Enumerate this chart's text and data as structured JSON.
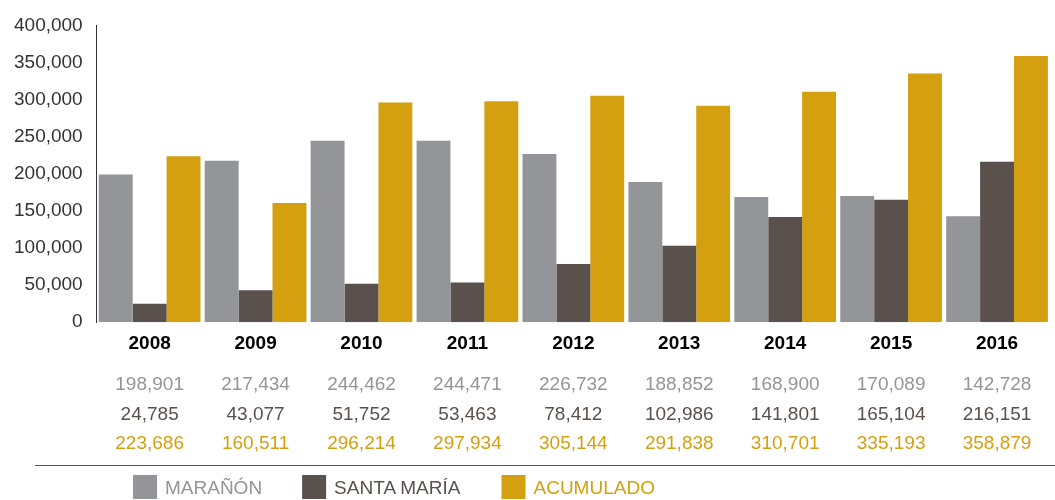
{
  "chart_data": {
    "type": "bar",
    "categories": [
      "2008",
      "2009",
      "2010",
      "2011",
      "2012",
      "2013",
      "2014",
      "2015",
      "2016"
    ],
    "series": [
      {
        "name": "MARAÑÓN",
        "color": "#939598",
        "values": [
          198901,
          217434,
          244462,
          244471,
          226732,
          188852,
          168900,
          170089,
          142728
        ],
        "value_labels": [
          "198,901",
          "217,434",
          "244,462",
          "244,471",
          "226,732",
          "188,852",
          "168,900",
          "170,089",
          "142,728"
        ]
      },
      {
        "name": "SANTA MARÍA",
        "color": "#5a514c",
        "values": [
          24785,
          43077,
          51752,
          53463,
          78412,
          102986,
          141801,
          165104,
          216151
        ],
        "value_labels": [
          "24,785",
          "43,077",
          "51,752",
          "53,463",
          "78,412",
          "102,986",
          "141,801",
          "165,104",
          "216,151"
        ]
      },
      {
        "name": "ACUMULADO",
        "color": "#d4a00f",
        "values": [
          223686,
          160511,
          296214,
          297934,
          305144,
          291838,
          310701,
          335193,
          358879
        ],
        "value_labels": [
          "223,686",
          "160,511",
          "296,214",
          "297,934",
          "305,144",
          "291,838",
          "310,701",
          "335,193",
          "358,879"
        ]
      }
    ],
    "ylim": [
      0,
      400000
    ],
    "yticks": [
      0,
      {
        "value": 50000,
        "label": "50,000"
      },
      {
        "value": 100000,
        "label": "100,000"
      },
      {
        "value": 150000,
        "label": "150,000"
      },
      {
        "value": 200000,
        "label": "200,000"
      },
      {
        "value": 250000,
        "label": "250,000"
      },
      {
        "value": 300000,
        "label": "300,000"
      },
      {
        "value": 350000,
        "label": "350,000"
      },
      {
        "value": 400000,
        "label": "400,000"
      }
    ],
    "grid": false,
    "legend": "bottom"
  }
}
